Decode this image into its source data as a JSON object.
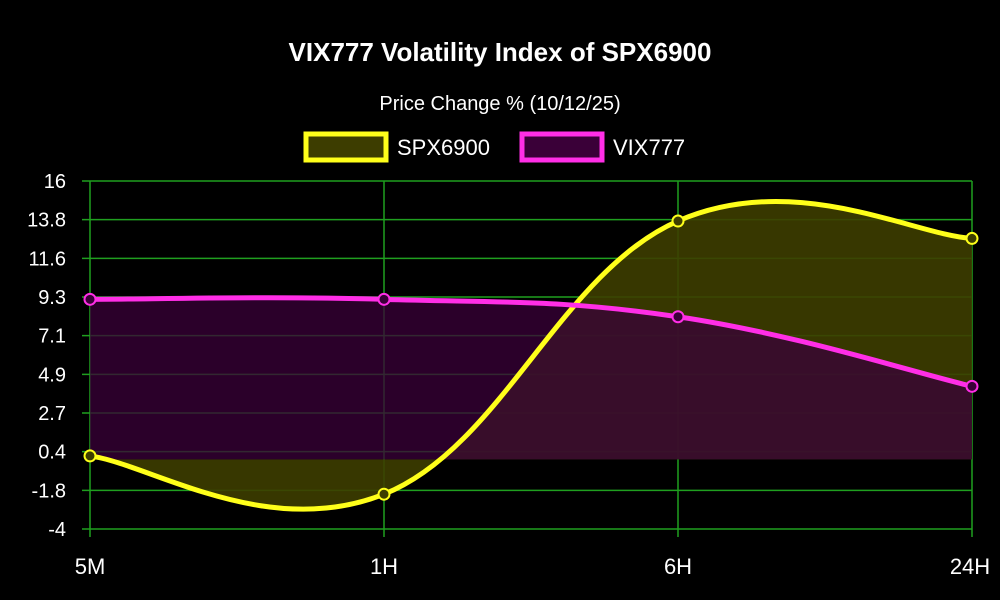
{
  "chart_data": {
    "type": "line",
    "title": "VIX777 Volatility Index of SPX6900",
    "subtitle": "Price Change % (10/12/25)",
    "categories": [
      "5M",
      "1H",
      "6H",
      "24H"
    ],
    "y_ticks": [
      "16",
      "13.8",
      "11.6",
      "9.3",
      "7.1",
      "4.9",
      "2.7",
      "0.4",
      "-1.8",
      "-4"
    ],
    "ylim": [
      -4,
      16
    ],
    "fill_baseline": 0,
    "grid": true,
    "legend_position": "top-center",
    "series": [
      {
        "name": "SPX6900",
        "values": [
          0.2,
          -2.0,
          13.7,
          12.7
        ],
        "color": "#ffff1a",
        "fill": "#3d3d00"
      },
      {
        "name": "VIX777",
        "values": [
          9.2,
          9.2,
          8.2,
          4.2
        ],
        "color": "#ff2ee6",
        "fill": "#3a0038"
      }
    ],
    "grid_color": "#1f9f1f",
    "background": "#000000"
  }
}
